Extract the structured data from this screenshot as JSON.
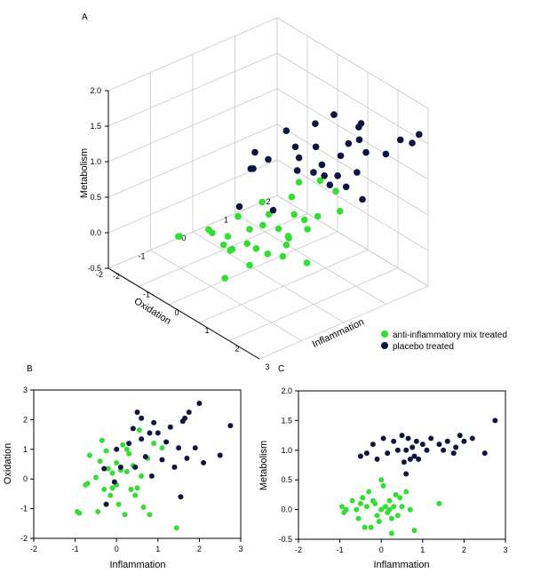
{
  "colors": {
    "anti": "#33dd33",
    "placebo": "#0d1540"
  },
  "legend": [
    {
      "label": "anti-inflammatory mix treated",
      "color": "#33dd33"
    },
    {
      "label": "placebo treated",
      "color": "#0d1540"
    }
  ],
  "chart_data": [
    {
      "panel": "A",
      "type": "scatter",
      "xlabel": "Inflammation",
      "ylabel": "Oxidation",
      "zlabel": "Metabolism",
      "xlim": [
        -2,
        3
      ],
      "ylim": [
        -2,
        2
      ],
      "zlim": [
        -0.5,
        2.0
      ],
      "xticks": [
        -2,
        -1,
        0,
        1,
        2,
        3
      ],
      "yticks": [
        -2,
        -1,
        0,
        1,
        2
      ],
      "zticks": [
        "-0.5",
        "0.0",
        "0.5",
        "1.0",
        "1.5",
        "2.0"
      ],
      "series": [
        {
          "name": "anti-inflammatory mix treated",
          "points": [
            [
              -0.9,
              -1.1,
              0.0
            ],
            [
              -0.8,
              -1.2,
              0.05
            ],
            [
              -0.7,
              -0.2,
              -0.3
            ],
            [
              -0.6,
              0.8,
              -0.1
            ],
            [
              -0.5,
              0.0,
              0.1
            ],
            [
              -0.4,
              0.5,
              0.2
            ],
            [
              -0.3,
              1.3,
              0.3
            ],
            [
              -0.2,
              -0.4,
              -0.2
            ],
            [
              -0.1,
              0.3,
              0.0
            ],
            [
              0.0,
              -0.6,
              0.1
            ],
            [
              0.0,
              0.6,
              -0.1
            ],
            [
              0.1,
              0.9,
              0.05
            ],
            [
              0.2,
              -1.2,
              0.4
            ],
            [
              0.2,
              0.2,
              -0.3
            ],
            [
              0.3,
              1.0,
              0.0
            ],
            [
              0.3,
              -0.3,
              0.2
            ],
            [
              0.4,
              0.5,
              -0.2
            ],
            [
              0.5,
              1.6,
              0.3
            ],
            [
              0.5,
              -0.5,
              0.1
            ],
            [
              0.6,
              0.4,
              0.0
            ],
            [
              0.7,
              -1.0,
              0.2
            ],
            [
              0.8,
              0.7,
              -0.4
            ],
            [
              0.9,
              0.2,
              0.1
            ],
            [
              1.0,
              -0.8,
              0.0
            ],
            [
              1.2,
              1.2,
              0.3
            ],
            [
              1.4,
              -0.3,
              0.1
            ],
            [
              0.4,
              1.3,
              0.5
            ],
            [
              -0.1,
              -0.9,
              0.2
            ],
            [
              0.6,
              1.1,
              0.1
            ],
            [
              0.1,
              0.0,
              -0.2
            ],
            [
              0.3,
              0.7,
              0.4
            ],
            [
              1.1,
              0.5,
              0.2
            ],
            [
              1.3,
              -1.6,
              0.1
            ]
          ]
        },
        {
          "name": "placebo treated",
          "points": [
            [
              -0.5,
              0.4,
              0.9
            ],
            [
              -0.3,
              1.0,
              1.1
            ],
            [
              -0.2,
              0.5,
              0.85
            ],
            [
              0.0,
              0.0,
              0.9
            ],
            [
              0.1,
              1.4,
              1.2
            ],
            [
              0.2,
              -0.2,
              1.0
            ],
            [
              0.3,
              1.7,
              1.3
            ],
            [
              0.4,
              0.8,
              0.95
            ],
            [
              0.5,
              2.2,
              1.1
            ],
            [
              0.6,
              1.2,
              0.8
            ],
            [
              0.7,
              2.0,
              1.15
            ],
            [
              0.8,
              1.5,
              0.9
            ],
            [
              0.9,
              0.4,
              1.0
            ],
            [
              1.0,
              1.8,
              1.1
            ],
            [
              1.1,
              0.9,
              0.85
            ],
            [
              1.2,
              1.4,
              1.2
            ],
            [
              1.3,
              0.5,
              1.05
            ],
            [
              1.4,
              1.0,
              0.9
            ],
            [
              1.5,
              1.6,
              1.1
            ],
            [
              1.6,
              2.0,
              1.0
            ],
            [
              1.7,
              0.6,
              0.95
            ],
            [
              1.8,
              2.2,
              1.2
            ],
            [
              1.9,
              1.1,
              1.05
            ],
            [
              2.0,
              2.5,
              1.25
            ],
            [
              2.1,
              0.7,
              1.0
            ],
            [
              2.5,
              0.8,
              0.9
            ],
            [
              2.75,
              1.8,
              1.5
            ],
            [
              0.0,
              1.0,
              0.95
            ],
            [
              0.8,
              -0.9,
              0.8
            ],
            [
              1.5,
              -0.6,
              0.85
            ],
            [
              0.4,
              1.2,
              1.0
            ]
          ]
        }
      ]
    },
    {
      "panel": "B",
      "type": "scatter",
      "xlabel": "Inflammation",
      "ylabel": "Oxidation",
      "xlim": [
        -2,
        3
      ],
      "ylim": [
        -2,
        3
      ],
      "xticks": [
        -2,
        -1,
        0,
        1,
        2,
        3
      ],
      "yticks": [
        -2,
        -1,
        0,
        1,
        2,
        3
      ],
      "series": [
        {
          "name": "anti-inflammatory mix treated",
          "points": [
            [
              -0.95,
              -1.1
            ],
            [
              -0.9,
              -1.15
            ],
            [
              -0.75,
              -0.2
            ],
            [
              -0.7,
              -0.15
            ],
            [
              -0.65,
              0.8
            ],
            [
              -0.5,
              0.05
            ],
            [
              -0.45,
              -1.1
            ],
            [
              -0.4,
              0.6
            ],
            [
              -0.35,
              1.3
            ],
            [
              -0.3,
              -0.35
            ],
            [
              -0.25,
              0.95
            ],
            [
              -0.2,
              0.35
            ],
            [
              -0.15,
              -0.55
            ],
            [
              -0.1,
              0.2
            ],
            [
              0.0,
              -0.2
            ],
            [
              0.0,
              0.55
            ],
            [
              0.05,
              -0.85
            ],
            [
              0.1,
              0.3
            ],
            [
              0.15,
              1.15
            ],
            [
              0.2,
              -1.2
            ],
            [
              0.25,
              0.25
            ],
            [
              0.3,
              0.85
            ],
            [
              0.35,
              -0.35
            ],
            [
              0.4,
              0.45
            ],
            [
              0.5,
              -0.3
            ],
            [
              0.55,
              1.65
            ],
            [
              0.6,
              0.1
            ],
            [
              0.65,
              -0.95
            ],
            [
              0.75,
              0.7
            ],
            [
              0.8,
              -1.2
            ],
            [
              0.9,
              1.2
            ],
            [
              1.1,
              1.05
            ],
            [
              1.45,
              -1.65
            ],
            [
              0.25,
              1.0
            ],
            [
              -0.1,
              -0.3
            ],
            [
              0.45,
              -0.55
            ]
          ]
        },
        {
          "name": "placebo treated",
          "points": [
            [
              -0.3,
              0.35
            ],
            [
              -0.05,
              -0.1
            ],
            [
              0.0,
              1.0
            ],
            [
              0.1,
              0.4
            ],
            [
              0.3,
              1.2
            ],
            [
              0.4,
              1.7
            ],
            [
              0.5,
              2.25
            ],
            [
              0.6,
              1.35
            ],
            [
              0.6,
              2.05
            ],
            [
              0.7,
              0.75
            ],
            [
              0.8,
              1.55
            ],
            [
              0.85,
              0.1
            ],
            [
              0.9,
              1.9
            ],
            [
              1.0,
              1.55
            ],
            [
              1.1,
              0.65
            ],
            [
              1.3,
              1.75
            ],
            [
              1.4,
              0.4
            ],
            [
              1.5,
              1.05
            ],
            [
              1.6,
              1.95
            ],
            [
              1.65,
              2.05
            ],
            [
              1.7,
              0.7
            ],
            [
              1.75,
              2.25
            ],
            [
              1.9,
              1.05
            ],
            [
              2.0,
              2.55
            ],
            [
              2.1,
              0.55
            ],
            [
              2.5,
              0.8
            ],
            [
              2.75,
              1.8
            ],
            [
              1.55,
              -0.6
            ],
            [
              -0.25,
              -0.85
            ],
            [
              0.45,
              0.4
            ],
            [
              1.2,
              1.25
            ]
          ]
        }
      ]
    },
    {
      "panel": "C",
      "type": "scatter",
      "xlabel": "Inflammation",
      "ylabel": "Metabolism",
      "xlim": [
        -2,
        3
      ],
      "ylim": [
        -0.5,
        2.0
      ],
      "xticks": [
        -2,
        -1,
        0,
        1,
        2,
        3
      ],
      "yticks": [
        "-0.5",
        "0.0",
        "0.5",
        "1.0",
        "1.5",
        "2.0"
      ],
      "series": [
        {
          "name": "anti-inflammatory mix treated",
          "points": [
            [
              -0.95,
              0.05
            ],
            [
              -0.9,
              -0.05
            ],
            [
              -0.85,
              0.0
            ],
            [
              -0.7,
              0.15
            ],
            [
              -0.6,
              0.0
            ],
            [
              -0.55,
              -0.15
            ],
            [
              -0.5,
              0.1
            ],
            [
              -0.45,
              0.2
            ],
            [
              -0.4,
              -0.3
            ],
            [
              -0.35,
              0.05
            ],
            [
              -0.3,
              0.3
            ],
            [
              -0.25,
              -0.3
            ],
            [
              -0.2,
              0.15
            ],
            [
              -0.1,
              -0.1
            ],
            [
              -0.05,
              -0.2
            ],
            [
              0.0,
              0.0
            ],
            [
              0.05,
              0.4
            ],
            [
              0.1,
              0.05
            ],
            [
              0.15,
              -0.05
            ],
            [
              0.2,
              0.15
            ],
            [
              0.2,
              0.0
            ],
            [
              0.25,
              -0.15
            ],
            [
              0.3,
              0.05
            ],
            [
              0.35,
              0.25
            ],
            [
              0.4,
              -0.1
            ],
            [
              0.45,
              0.2
            ],
            [
              0.5,
              0.05
            ],
            [
              0.6,
              0.3
            ],
            [
              0.7,
              0.0
            ],
            [
              0.8,
              -0.35
            ],
            [
              0.25,
              -0.4
            ],
            [
              1.4,
              0.1
            ],
            [
              0.0,
              0.5
            ],
            [
              -0.15,
              0.1
            ]
          ]
        },
        {
          "name": "placebo treated",
          "points": [
            [
              -0.5,
              0.9
            ],
            [
              -0.35,
              0.95
            ],
            [
              -0.2,
              1.1
            ],
            [
              -0.1,
              0.85
            ],
            [
              0.05,
              1.2
            ],
            [
              0.15,
              0.95
            ],
            [
              0.3,
              1.15
            ],
            [
              0.4,
              1.0
            ],
            [
              0.5,
              1.25
            ],
            [
              0.55,
              0.8
            ],
            [
              0.6,
              1.0
            ],
            [
              0.65,
              1.2
            ],
            [
              0.7,
              0.85
            ],
            [
              0.75,
              1.05
            ],
            [
              0.8,
              0.9
            ],
            [
              0.85,
              1.15
            ],
            [
              0.9,
              0.85
            ],
            [
              1.0,
              1.1
            ],
            [
              1.1,
              1.0
            ],
            [
              1.2,
              1.2
            ],
            [
              1.4,
              1.1
            ],
            [
              1.5,
              1.0
            ],
            [
              1.6,
              1.15
            ],
            [
              1.75,
              0.95
            ],
            [
              1.8,
              1.05
            ],
            [
              1.9,
              1.25
            ],
            [
              2.0,
              1.15
            ],
            [
              2.2,
              1.2
            ],
            [
              2.5,
              0.95
            ],
            [
              2.75,
              1.5
            ],
            [
              0.6,
              0.6
            ]
          ]
        }
      ]
    }
  ]
}
